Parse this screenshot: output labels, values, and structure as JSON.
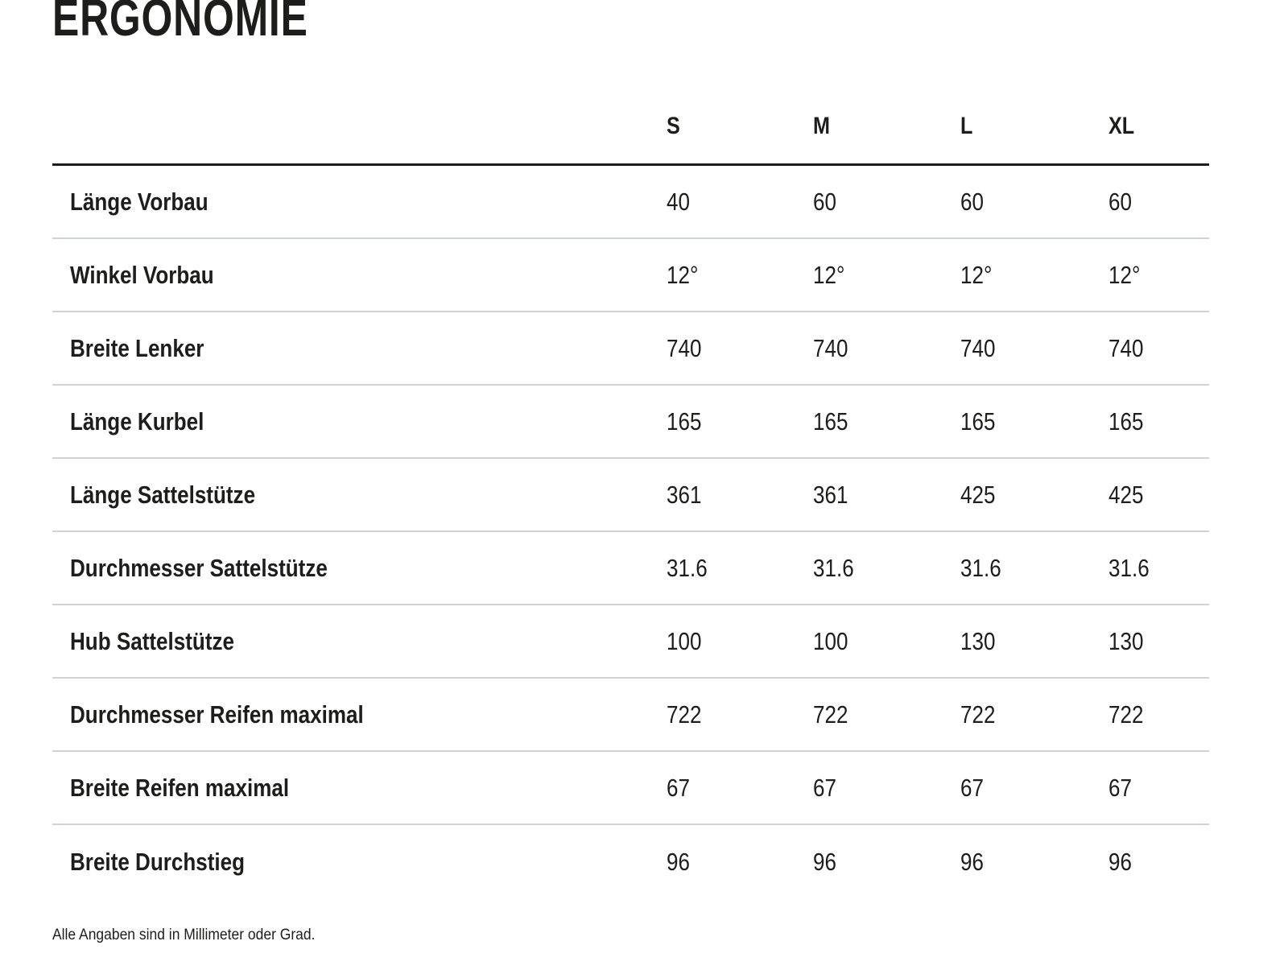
{
  "page": {
    "title": "ERGONOMIE",
    "footnote": "Alle Angaben sind in Millimeter oder Grad."
  },
  "table": {
    "columns": [
      "S",
      "M",
      "L",
      "XL"
    ],
    "rows": [
      {
        "label": "Länge Vorbau",
        "values": [
          "40",
          "60",
          "60",
          "60"
        ]
      },
      {
        "label": "Winkel Vorbau",
        "values": [
          "12°",
          "12°",
          "12°",
          "12°"
        ]
      },
      {
        "label": "Breite Lenker",
        "values": [
          "740",
          "740",
          "740",
          "740"
        ]
      },
      {
        "label": "Länge Kurbel",
        "values": [
          "165",
          "165",
          "165",
          "165"
        ]
      },
      {
        "label": "Länge Sattelstütze",
        "values": [
          "361",
          "361",
          "425",
          "425"
        ]
      },
      {
        "label": "Durchmesser Sattelstütze",
        "values": [
          "31.6",
          "31.6",
          "31.6",
          "31.6"
        ]
      },
      {
        "label": "Hub Sattelstütze",
        "values": [
          "100",
          "100",
          "130",
          "130"
        ]
      },
      {
        "label": "Durchmesser Reifen maximal",
        "values": [
          "722",
          "722",
          "722",
          "722"
        ]
      },
      {
        "label": "Breite Reifen maximal",
        "values": [
          "67",
          "67",
          "67",
          "67"
        ]
      },
      {
        "label": "Breite Durchstieg",
        "values": [
          "96",
          "96",
          "96",
          "96"
        ]
      }
    ]
  },
  "colors": {
    "text": "#1d1d1b",
    "separator": "#cdd3d4",
    "header_rule": "#1d1d1b",
    "background": "#ffffff"
  }
}
